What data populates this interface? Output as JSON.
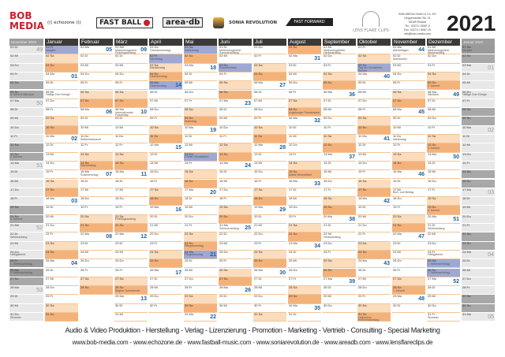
{
  "header": {
    "logos": {
      "bob": "BOB MEDIA",
      "echozone": "((( echozone )))",
      "fastball": "FAST BALL",
      "areadb": "area·db",
      "sonia": "SONIA REVOLUTION",
      "ff": "FAST FORWARD",
      "lens": "LENS FLARE CLIPS"
    },
    "address": [
      "BOB-MEDIA GmbH & Co. KG",
      "Heppendorfer Str. 21",
      "50189 Elsdorf",
      "Tel.: 02274 / 8087-0",
      "Fax: 02274 / 8087-20",
      "info@bob-media.com"
    ],
    "year": "2021"
  },
  "weekday_abbr": [
    "Mo",
    "Di",
    "Mi",
    "Do",
    "Fr",
    "Sa",
    "So"
  ],
  "colors": {
    "saturday": "#fbdcbd",
    "sunday": "#f4b27b",
    "holiday": "#9ea8d2",
    "week_number": "#1f5f99",
    "header": "#3b3a37",
    "side_column": "#e8e8e8"
  },
  "months": [
    {
      "name": "Dezember 2020",
      "side": true,
      "first_weekday": 1,
      "days": 31,
      "weeks": {
        "1": "49",
        "7": "50",
        "14": "51",
        "21": "52",
        "28": "53"
      },
      "events": {
        "6": "2. Advent Nikolaus",
        "13": "3. Advent",
        "20": "4. Advent",
        "22": "Winteranfang",
        "24": "Heiligabend",
        "25": "1. Weihnachtstag",
        "26": "2. Weihnachtstag",
        "31": "Silvester"
      },
      "holidays": [
        25,
        26
      ]
    },
    {
      "name": "Januar",
      "first_weekday": 4,
      "days": 31,
      "weeks": {
        "4": "01",
        "11": "02",
        "18": "03",
        "25": "04"
      },
      "events": {
        "1": "Neujahr",
        "6": "Heilige Drei Könige"
      },
      "holidays": [
        1
      ]
    },
    {
      "name": "Februar",
      "first_weekday": 0,
      "days": 28,
      "weeks": {
        "1": "05",
        "8": "06",
        "15": "07",
        "22": "08"
      },
      "events": {
        "11": "Weiberfastnacht",
        "14": "Valentinstag",
        "15": "Rosenmontag"
      },
      "holidays": []
    },
    {
      "name": "März",
      "first_weekday": 0,
      "days": 31,
      "weeks": {
        "1": "09",
        "8": "10",
        "15": "11",
        "22": "12",
        "29": "13"
      },
      "events": {
        "1": "Meteorologischer Frühlingsanfang",
        "8": "Internationaler Frauentag",
        "20": "Frühlingsanfang",
        "28": "Beginn Sommerzeit"
      },
      "holidays": []
    },
    {
      "name": "April",
      "first_weekday": 3,
      "days": 30,
      "weeks": {
        "5": "14",
        "12": "15",
        "19": "16",
        "26": "17"
      },
      "events": {
        "1": "Gründonnerstag",
        "2": "Karfreitag",
        "3": "Karsamstag",
        "4": "Ostersonntag",
        "5": "Ostermontag"
      },
      "holidays": [
        2,
        5
      ]
    },
    {
      "name": "Mai",
      "first_weekday": 5,
      "days": 31,
      "weeks": {
        "3": "18",
        "10": "19",
        "17": "20",
        "24": "21",
        "31": "22"
      },
      "events": {
        "1": "Maifeiertag",
        "9": "Muttertag",
        "13": "Christi Himmelfahrt",
        "23": "Pfingstsonntag",
        "24": "Pfingstmontag"
      },
      "holidays": [
        1,
        13,
        24
      ]
    },
    {
      "name": "Juni",
      "first_weekday": 1,
      "days": 30,
      "weeks": {
        "7": "23",
        "14": "24",
        "21": "25",
        "28": "26"
      },
      "events": {
        "1": "Meteorologischer Sommeranfang",
        "3": "Fronleichnam",
        "21": "Sommeranfang"
      },
      "holidays": [
        3
      ]
    },
    {
      "name": "Juli",
      "first_weekday": 3,
      "days": 31,
      "weeks": {
        "5": "27",
        "12": "28",
        "19": "29",
        "26": "30"
      },
      "events": {},
      "holidays": []
    },
    {
      "name": "August",
      "first_weekday": 6,
      "days": 31,
      "weeks": {
        "2": "31",
        "9": "32",
        "16": "33",
        "23": "34",
        "30": "35"
      },
      "events": {
        "8": "Augsburger Friedensfest",
        "15": "Mariä Himmelfahrt"
      },
      "holidays": []
    },
    {
      "name": "September",
      "first_weekday": 2,
      "days": 30,
      "weeks": {
        "6": "36",
        "13": "37",
        "20": "38",
        "27": "39"
      },
      "events": {
        "1": "Meteorologischer Herbstanfang",
        "22": "Herbstanfang"
      },
      "holidays": []
    },
    {
      "name": "Oktober",
      "first_weekday": 4,
      "days": 31,
      "weeks": {
        "4": "40",
        "11": "41",
        "18": "42",
        "25": "43"
      },
      "events": {
        "3": "Tag der Deutschen Einheit",
        "31": "Halloween Reformationstag"
      },
      "holidays": [
        3
      ]
    },
    {
      "name": "November",
      "first_weekday": 0,
      "days": 30,
      "weeks": {
        "1": "44",
        "8": "45",
        "15": "46",
        "22": "47",
        "29": "48"
      },
      "events": {
        "1": "Allerheiligen",
        "2": "Allerseelen",
        "11": "Martinstag",
        "17": "Buß- und Bettag",
        "28": "1. Advent"
      },
      "holidays": []
    },
    {
      "name": "Dezember",
      "first_weekday": 2,
      "days": 31,
      "weeks": {
        "6": "49",
        "13": "50",
        "20": "51",
        "27": "52"
      },
      "events": {
        "1": "Meteorologischer Winteranfang",
        "5": "2. Advent",
        "6": "Nikolaus",
        "12": "3. Advent",
        "19": "4. Advent",
        "21": "Winteranfang",
        "24": "Heiligabend",
        "25": "1. Weihnachtstag",
        "26": "2. Weihnachtstag",
        "31": "Silvester"
      },
      "holidays": [
        25,
        26
      ]
    },
    {
      "name": "Januar 2022",
      "side": true,
      "first_weekday": 5,
      "days": 31,
      "weeks": {
        "3": "01",
        "10": "02",
        "17": "03",
        "24": "04",
        "31": "05"
      },
      "events": {
        "1": "Neujahr",
        "6": "Heilige Drei Könige"
      },
      "holidays": [
        1
      ]
    }
  ],
  "footer": {
    "tagline": "Audio & Video Produktion - Herstellung - Verlag - Lizenzierung - Promotion - Marketing - Vertrieb - Consulting - Special Marketing",
    "urls": "www.bob-media.com - www.echozone.de - www.fastball-music.com - www.soniarevolution.de - www.areadb.com - www.lensflareclips.de"
  }
}
